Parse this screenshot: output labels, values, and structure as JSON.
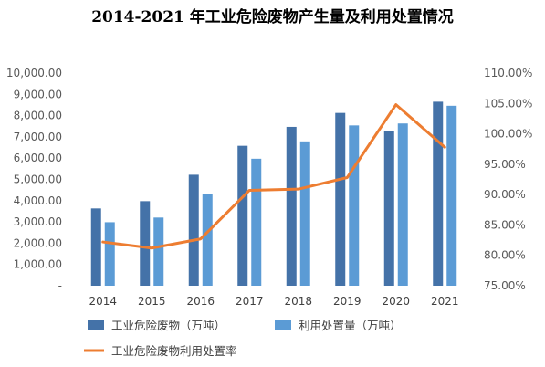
{
  "chart_data": {
    "type": "bar",
    "title": "2014-2021 年工业危险废物产生量及利用处置情况",
    "categories": [
      "2014",
      "2015",
      "2016",
      "2017",
      "2018",
      "2019",
      "2020",
      "2021"
    ],
    "series": [
      {
        "name": "工业危险废物（万吨）",
        "type": "bar",
        "axis": "left",
        "color": "#4472a8",
        "values": [
          3634,
          3976,
          5219,
          6581,
          7470,
          8126,
          7282,
          8653
        ]
      },
      {
        "name": "利用处置量（万吨）",
        "type": "bar",
        "axis": "left",
        "color": "#5b9bd5",
        "values": [
          2986,
          3205,
          4317,
          5972,
          6788,
          7539,
          7630,
          8462
        ]
      },
      {
        "name": "工业危险废物利用处置率",
        "type": "line",
        "axis": "right",
        "color": "#ed7d31",
        "values": [
          82.2,
          81.2,
          82.7,
          90.7,
          90.9,
          92.8,
          104.8,
          97.8
        ]
      }
    ],
    "y_left": {
      "min": 0,
      "max": 10000,
      "step": 1000,
      "tick_labels": [
        "-",
        "1,000.00",
        "2,000.00",
        "3,000.00",
        "4,000.00",
        "5,000.00",
        "6,000.00",
        "7,000.00",
        "8,000.00",
        "9,000.00",
        "10,000.00"
      ]
    },
    "y_right": {
      "min": 75,
      "max": 110,
      "step": 5,
      "tick_labels": [
        "75.00%",
        "80.00%",
        "85.00%",
        "90.00%",
        "95.00%",
        "100.00%",
        "105.00%",
        "110.00%"
      ]
    },
    "grid": false,
    "legend_position": "bottom"
  }
}
